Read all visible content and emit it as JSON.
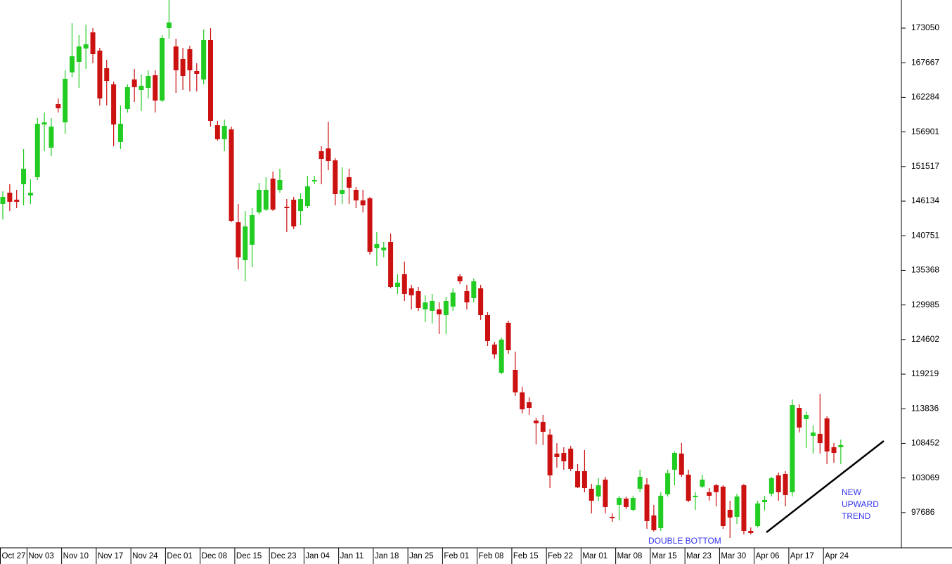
{
  "chart_data": {
    "type": "candlestick",
    "up_color": "#22cc22",
    "down_color": "#cc1111",
    "ylim": [
      92310,
      177425
    ],
    "yticks": [
      97686,
      103069,
      108452,
      113836,
      119219,
      124602,
      129985,
      135368,
      140751,
      146134,
      151517,
      156901,
      162284,
      167667,
      173050
    ],
    "categories": [
      "Oct 27",
      null,
      null,
      null,
      "Nov 03",
      null,
      null,
      null,
      null,
      "Nov 10",
      null,
      null,
      null,
      null,
      "Nov 17",
      null,
      null,
      null,
      null,
      "Nov 24",
      null,
      null,
      null,
      null,
      "Dec 01",
      null,
      null,
      null,
      null,
      "Dec 08",
      null,
      null,
      null,
      null,
      "Dec 15",
      null,
      null,
      null,
      null,
      "Dec 23",
      null,
      null,
      null,
      null,
      "Jan 04",
      null,
      null,
      null,
      null,
      "Jan 11",
      null,
      null,
      null,
      null,
      "Jan 18",
      null,
      null,
      null,
      null,
      "Jan 25",
      null,
      null,
      null,
      null,
      "Feb 01",
      null,
      null,
      null,
      null,
      "Feb 08",
      null,
      null,
      null,
      null,
      "Feb 15",
      null,
      null,
      null,
      null,
      "Feb 22",
      null,
      null,
      null,
      null,
      "Mar 01",
      null,
      null,
      null,
      null,
      "Mar 08",
      null,
      null,
      null,
      null,
      "Mar 15",
      null,
      null,
      null,
      null,
      "Mar 23",
      null,
      null,
      null,
      null,
      "Mar 30",
      null,
      null,
      null,
      null,
      "Apr 06",
      null,
      null,
      null,
      null,
      "Apr 17",
      null,
      null,
      null,
      null,
      "Apr 24",
      null,
      null
    ],
    "open": [
      145700,
      147450,
      146360,
      148760,
      147010,
      149860,
      158060,
      154450,
      161230,
      158390,
      166160,
      167800,
      169880,
      172390,
      169550,
      166810,
      164300,
      155330,
      160470,
      165060,
      163420,
      163750,
      165720,
      161780,
      173050,
      170200,
      168240,
      169770,
      166380,
      165060,
      171190,
      157950,
      155760,
      157300,
      142850,
      136950,
      139350,
      144390,
      144820,
      149640,
      147890,
      145260,
      146360,
      144600,
      145370,
      149200,
      153900,
      154340,
      152480,
      147230,
      149860,
      147890,
      146250,
      146570,
      138810,
      138480,
      139790,
      132790,
      134760,
      132570,
      132130,
      129290,
      129070,
      129290,
      128410,
      129730,
      134430,
      132130,
      131040,
      132570,
      128410,
      123820,
      119440,
      127210,
      119880,
      116380,
      114850,
      112000,
      111790,
      109820,
      106860,
      106970,
      107630,
      104130,
      104130,
      101390,
      100190,
      102810,
      97020,
      98880,
      99860,
      98110,
      101390,
      102050,
      97240,
      95270,
      100520,
      104350,
      106860,
      103580,
      100080,
      101720,
      100850,
      101940,
      101720,
      98110,
      97020,
      101940,
      94830,
      95590,
      99310,
      100630,
      103470,
      103690,
      100850,
      113970,
      112220,
      109600,
      109930,
      112330,
      107850,
      107850
    ],
    "high": [
      147670,
      148760,
      147890,
      154230,
      149530,
      159050,
      159920,
      159050,
      162110,
      166490,
      173820,
      171960,
      173600,
      173050,
      169990,
      168130,
      164740,
      161020,
      164300,
      166700,
      165830,
      166490,
      166490,
      171960,
      177420,
      171410,
      169990,
      170310,
      167580,
      172830,
      173050,
      158610,
      158830,
      157730,
      145700,
      144600,
      145040,
      148980,
      149860,
      150730,
      151170,
      146460,
      146790,
      147340,
      150080,
      150080,
      154670,
      158500,
      152810,
      151390,
      151170,
      148330,
      147890,
      146790,
      141320,
      139790,
      141100,
      134760,
      136730,
      133120,
      132790,
      131480,
      131700,
      130380,
      131260,
      132570,
      134760,
      133120,
      134100,
      133120,
      128850,
      124260,
      124910,
      127540,
      122730,
      117260,
      115610,
      112440,
      112880,
      110690,
      108500,
      107850,
      108070,
      105220,
      107410,
      102160,
      103030,
      103250,
      97560,
      100300,
      100190,
      100300,
      104350,
      103030,
      98880,
      100850,
      104350,
      107190,
      108500,
      104350,
      100850,
      103580,
      101500,
      102160,
      101940,
      99530,
      100630,
      102160,
      95380,
      99530,
      100300,
      103250,
      103910,
      104130,
      115290,
      114520,
      113430,
      111240,
      116160,
      112660,
      108500,
      109050
    ],
    "low": [
      143290,
      144600,
      145040,
      145480,
      145700,
      149420,
      153900,
      153140,
      159920,
      156640,
      165390,
      163750,
      166700,
      167580,
      161020,
      161020,
      154670,
      154230,
      159920,
      161560,
      160140,
      162110,
      159920,
      161560,
      171410,
      162980,
      163420,
      163200,
      163200,
      164300,
      157730,
      155550,
      153900,
      142850,
      135520,
      133660,
      135850,
      144060,
      144600,
      144600,
      147450,
      141320,
      141760,
      142420,
      145040,
      148760,
      148760,
      150950,
      145480,
      145700,
      145700,
      145040,
      144390,
      137820,
      136070,
      137380,
      132570,
      131700,
      130600,
      129290,
      129070,
      127320,
      127100,
      125460,
      125460,
      129070,
      133230,
      129290,
      130380,
      127650,
      123600,
      121630,
      119220,
      122400,
      115830,
      113100,
      112880,
      108280,
      108180,
      101500,
      104670,
      104350,
      104130,
      101500,
      100850,
      97560,
      99530,
      97560,
      96250,
      96470,
      98220,
      97890,
      100850,
      95160,
      94720,
      94830,
      100190,
      101940,
      103250,
      99310,
      98110,
      101500,
      99530,
      98660,
      95160,
      93730,
      95920,
      94280,
      94280,
      95380,
      98000,
      100190,
      99530,
      98660,
      100190,
      110140,
      107740,
      106860,
      106860,
      105220,
      105440,
      105220
    ],
    "close": [
      146790,
      146030,
      146030,
      151170,
      147450,
      158170,
      158390,
      157730,
      160580,
      165170,
      168670,
      170200,
      170530,
      169000,
      162110,
      164840,
      158060,
      158170,
      163860,
      163860,
      164080,
      165610,
      161780,
      171520,
      173920,
      166490,
      165610,
      166490,
      165940,
      171190,
      158610,
      155760,
      157840,
      143070,
      137380,
      142200,
      143950,
      147890,
      147890,
      144820,
      149420,
      145040,
      142200,
      146460,
      148430,
      149420,
      152700,
      152370,
      147230,
      147890,
      148220,
      146250,
      145480,
      138260,
      139460,
      138920,
      132790,
      133450,
      131700,
      131480,
      129510,
      130380,
      130600,
      128520,
      130600,
      131920,
      133660,
      130380,
      133660,
      128410,
      124370,
      122290,
      124590,
      122940,
      116380,
      113750,
      113970,
      111570,
      110250,
      103470,
      106320,
      105660,
      104460,
      101610,
      101500,
      99530,
      101940,
      98550,
      96800,
      99970,
      98550,
      99970,
      103250,
      96360,
      94940,
      100300,
      103800,
      106970,
      103580,
      99530,
      100300,
      102810,
      100300,
      100850,
      95590,
      96910,
      100190,
      94830,
      94500,
      99100,
      99640,
      103030,
      100850,
      100410,
      114410,
      110910,
      112880,
      110140,
      108500,
      107190,
      106970,
      108180
    ],
    "annotations": [
      "DOUBLE BOTTOM",
      "NEW",
      "UPWARD",
      "TREND"
    ]
  }
}
